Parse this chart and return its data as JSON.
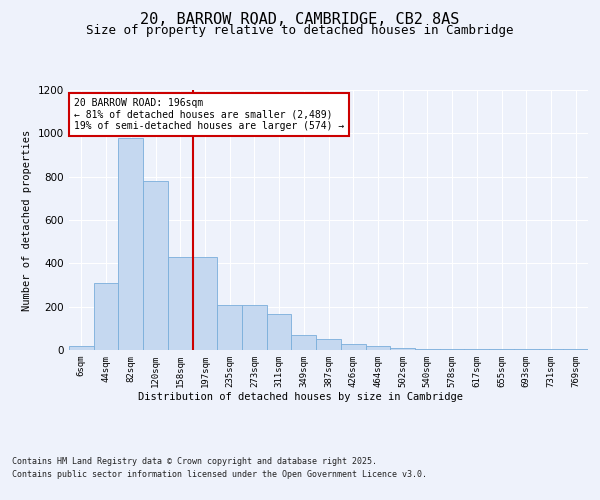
{
  "title_line1": "20, BARROW ROAD, CAMBRIDGE, CB2 8AS",
  "title_line2": "Size of property relative to detached houses in Cambridge",
  "xlabel": "Distribution of detached houses by size in Cambridge",
  "ylabel": "Number of detached properties",
  "categories": [
    "6sqm",
    "44sqm",
    "82sqm",
    "120sqm",
    "158sqm",
    "197sqm",
    "235sqm",
    "273sqm",
    "311sqm",
    "349sqm",
    "387sqm",
    "426sqm",
    "464sqm",
    "502sqm",
    "540sqm",
    "578sqm",
    "617sqm",
    "655sqm",
    "693sqm",
    "731sqm",
    "769sqm"
  ],
  "values": [
    20,
    310,
    980,
    780,
    430,
    430,
    210,
    210,
    165,
    70,
    50,
    30,
    20,
    8,
    5,
    5,
    5,
    5,
    5,
    5,
    5
  ],
  "bar_color": "#c5d8f0",
  "bar_edge_color": "#7aaedb",
  "vline_x_index": 5,
  "vline_color": "#cc0000",
  "annotation_text": "20 BARROW ROAD: 196sqm\n← 81% of detached houses are smaller (2,489)\n19% of semi-detached houses are larger (574) →",
  "annotation_box_color": "#cc0000",
  "ylim_max": 1200,
  "yticks": [
    0,
    200,
    400,
    600,
    800,
    1000,
    1200
  ],
  "background_color": "#eef2fb",
  "plot_bg_color": "#eef2fb",
  "footer_line1": "Contains HM Land Registry data © Crown copyright and database right 2025.",
  "footer_line2": "Contains public sector information licensed under the Open Government Licence v3.0.",
  "title_fontsize": 11,
  "subtitle_fontsize": 9
}
